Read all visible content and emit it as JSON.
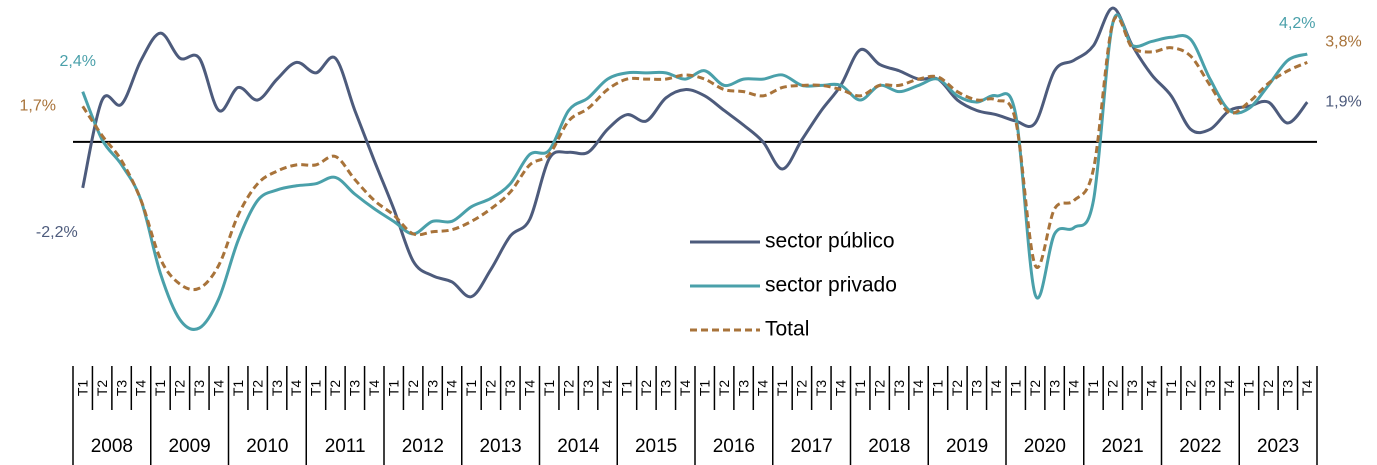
{
  "chart_data": {
    "type": "line",
    "categories": [
      "T1",
      "T2",
      "T3",
      "T4",
      "T1",
      "T2",
      "T3",
      "T4",
      "T1",
      "T2",
      "T3",
      "T4",
      "T1",
      "T2",
      "T3",
      "T4",
      "T1",
      "T2",
      "T3",
      "T4",
      "T1",
      "T2",
      "T3",
      "T4",
      "T1",
      "T2",
      "T3",
      "T4",
      "T1",
      "T2",
      "T3",
      "T4",
      "T1",
      "T2",
      "T3",
      "T4",
      "T1",
      "T2",
      "T3",
      "T4",
      "T1",
      "T2",
      "T3",
      "T4",
      "T1",
      "T2",
      "T3",
      "T4",
      "T1",
      "T2",
      "T3",
      "T4",
      "T1",
      "T2",
      "T3",
      "T4",
      "T1",
      "T2",
      "T3",
      "T4",
      "T1",
      "T2",
      "T3",
      "T4"
    ],
    "years": [
      "2008",
      "2009",
      "2010",
      "2011",
      "2012",
      "2013",
      "2014",
      "2015",
      "2016",
      "2017",
      "2018",
      "2019",
      "2020",
      "2021",
      "2022",
      "2023"
    ],
    "series": [
      {
        "name": "sector público",
        "color": "#4d5b7c",
        "dashed": false,
        "values": [
          -2.2,
          2.0,
          1.8,
          3.9,
          5.2,
          4.0,
          4.0,
          1.5,
          2.6,
          2.0,
          3.0,
          3.8,
          3.3,
          4.0,
          1.5,
          -0.9,
          -3.2,
          -5.7,
          -6.4,
          -6.7,
          -7.4,
          -6.1,
          -4.5,
          -3.7,
          -0.8,
          -0.5,
          -0.5,
          0.6,
          1.3,
          1.0,
          2.1,
          2.5,
          2.2,
          1.5,
          0.8,
          0.0,
          -1.3,
          0.1,
          1.5,
          2.7,
          4.4,
          3.7,
          3.4,
          3.0,
          3.0,
          2.0,
          1.5,
          1.3,
          1.0,
          0.9,
          3.4,
          3.9,
          4.6,
          6.4,
          4.6,
          3.2,
          2.2,
          0.6,
          0.6,
          1.5,
          1.7,
          1.9,
          0.9,
          1.9
        ],
        "value_labels": [
          "-2,2%",
          null,
          null,
          null,
          null,
          null,
          null,
          null,
          null,
          null,
          null,
          null,
          null,
          null,
          null,
          null,
          null,
          null,
          null,
          null,
          null,
          null,
          null,
          null,
          null,
          null,
          null,
          null,
          null,
          null,
          null,
          null,
          null,
          null,
          null,
          null,
          null,
          null,
          null,
          null,
          null,
          null,
          null,
          null,
          null,
          null,
          null,
          null,
          null,
          null,
          null,
          null,
          null,
          null,
          null,
          null,
          null,
          null,
          null,
          null,
          null,
          null,
          null,
          "1,9%"
        ]
      },
      {
        "name": "sector privado",
        "color": "#4aa0aa",
        "dashed": false,
        "values": [
          2.4,
          0.1,
          -1.1,
          -2.8,
          -6.3,
          -8.5,
          -8.9,
          -7.5,
          -4.7,
          -2.8,
          -2.3,
          -2.1,
          -2.0,
          -1.7,
          -2.5,
          -3.2,
          -3.8,
          -4.4,
          -3.8,
          -3.8,
          -3.1,
          -2.7,
          -2.0,
          -0.6,
          -0.4,
          1.5,
          2.1,
          3.0,
          3.3,
          3.3,
          3.3,
          3.0,
          3.4,
          2.7,
          3.0,
          3.0,
          3.2,
          2.7,
          2.7,
          2.7,
          2.0,
          2.7,
          2.4,
          2.7,
          3.0,
          2.2,
          1.9,
          2.2,
          1.3,
          -7.3,
          -4.4,
          -4.1,
          -2.8,
          5.7,
          4.6,
          4.8,
          5.0,
          4.9,
          3.0,
          1.5,
          1.6,
          2.7,
          3.9,
          4.2
        ],
        "value_labels": [
          "2,4%",
          null,
          null,
          null,
          null,
          null,
          null,
          null,
          null,
          null,
          null,
          null,
          null,
          null,
          null,
          null,
          null,
          null,
          null,
          null,
          null,
          null,
          null,
          null,
          null,
          null,
          null,
          null,
          null,
          null,
          null,
          null,
          null,
          null,
          null,
          null,
          null,
          null,
          null,
          null,
          null,
          null,
          null,
          null,
          null,
          null,
          null,
          null,
          null,
          null,
          null,
          null,
          null,
          null,
          null,
          null,
          null,
          null,
          null,
          null,
          null,
          null,
          null,
          "4,2%"
        ]
      },
      {
        "name": "Total",
        "color": "#a8733a",
        "dashed": true,
        "values": [
          1.7,
          0.3,
          -0.9,
          -2.8,
          -5.6,
          -6.8,
          -7.0,
          -5.9,
          -3.5,
          -2.0,
          -1.4,
          -1.1,
          -1.1,
          -0.7,
          -1.8,
          -2.8,
          -3.5,
          -4.4,
          -4.3,
          -4.2,
          -3.8,
          -3.2,
          -2.4,
          -1.1,
          -0.6,
          1.0,
          1.6,
          2.5,
          3.0,
          3.0,
          3.0,
          3.2,
          3.0,
          2.5,
          2.4,
          2.2,
          2.6,
          2.7,
          2.7,
          2.5,
          2.2,
          2.7,
          2.7,
          3.0,
          3.1,
          2.4,
          2.0,
          2.0,
          1.0,
          -5.9,
          -3.2,
          -2.8,
          -1.3,
          5.7,
          4.5,
          4.3,
          4.5,
          4.1,
          2.7,
          1.4,
          1.9,
          2.8,
          3.4,
          3.8
        ],
        "value_labels": [
          "1,7%",
          null,
          null,
          null,
          null,
          null,
          null,
          null,
          null,
          null,
          null,
          null,
          null,
          null,
          null,
          null,
          null,
          null,
          null,
          null,
          null,
          null,
          null,
          null,
          null,
          null,
          null,
          null,
          null,
          null,
          null,
          null,
          null,
          null,
          null,
          null,
          null,
          null,
          null,
          null,
          null,
          null,
          null,
          null,
          null,
          null,
          null,
          null,
          null,
          null,
          null,
          null,
          null,
          null,
          null,
          null,
          null,
          null,
          null,
          null,
          null,
          null,
          null,
          "3,8%"
        ]
      }
    ]
  }
}
